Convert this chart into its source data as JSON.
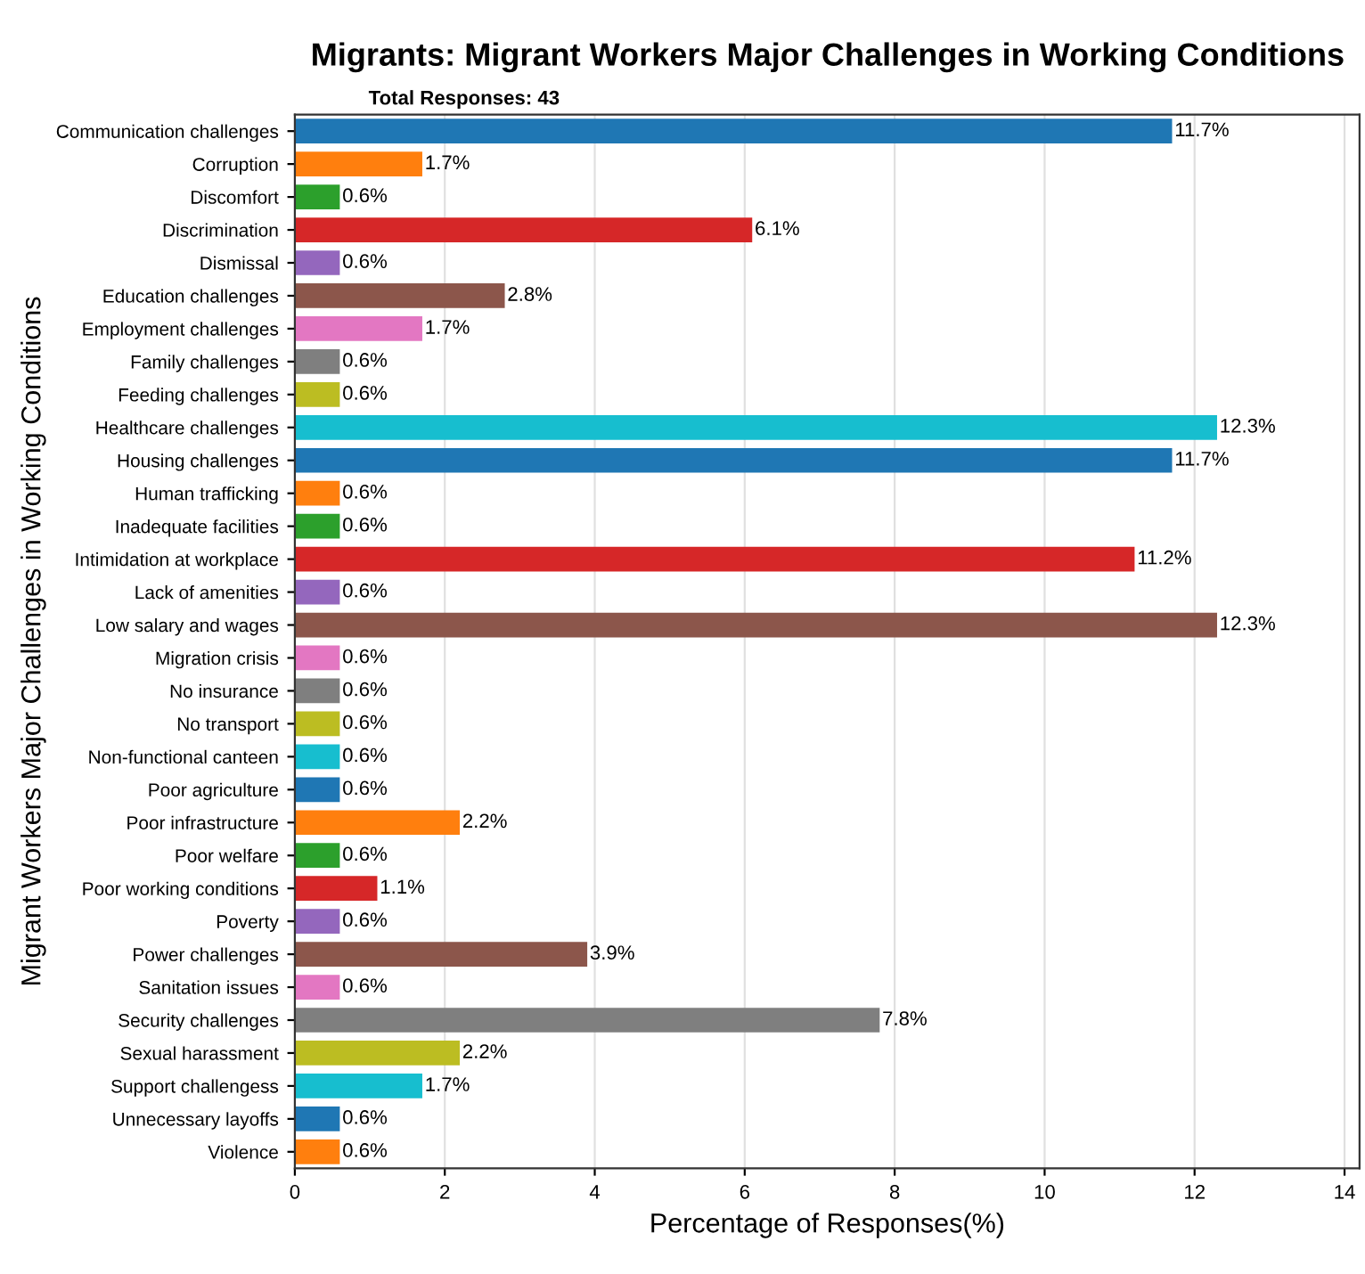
{
  "chart_data": {
    "type": "bar",
    "orientation": "horizontal",
    "title": "Migrants: Migrant Workers Major Challenges in Working Conditions",
    "subtitle": "Total Responses: 43",
    "xlabel": "Percentage of Responses(%)",
    "ylabel": "Migrant Workers Major Challenges in Working Conditions",
    "categories": [
      "Communication challenges",
      "Corruption",
      "Discomfort",
      "Discrimination",
      "Dismissal",
      "Education challenges",
      "Employment challenges",
      "Family challenges",
      "Feeding challenges",
      "Healthcare challenges",
      "Housing challenges",
      "Human trafficking",
      "Inadequate facilities",
      "Intimidation at workplace",
      "Lack of amenities",
      "Low salary and wages",
      "Migration crisis",
      "No insurance",
      "No transport",
      "Non-functional canteen",
      "Poor agriculture",
      "Poor infrastructure",
      "Poor welfare",
      "Poor working conditions",
      "Poverty",
      "Power challenges",
      "Sanitation issues",
      "Security challenges",
      "Sexual harassment",
      "Support challengess",
      "Unnecessary layoffs",
      "Violence"
    ],
    "values": [
      11.7,
      1.7,
      0.6,
      6.1,
      0.6,
      2.8,
      1.7,
      0.6,
      0.6,
      12.3,
      11.7,
      0.6,
      0.6,
      11.2,
      0.6,
      12.3,
      0.6,
      0.6,
      0.6,
      0.6,
      0.6,
      2.2,
      0.6,
      1.1,
      0.6,
      3.9,
      0.6,
      7.8,
      2.2,
      1.7,
      0.6,
      0.6
    ],
    "value_labels": [
      "11.7%",
      "1.7%",
      "0.6%",
      "6.1%",
      "0.6%",
      "2.8%",
      "1.7%",
      "0.6%",
      "0.6%",
      "12.3%",
      "11.7%",
      "0.6%",
      "0.6%",
      "11.2%",
      "0.6%",
      "12.3%",
      "0.6%",
      "0.6%",
      "0.6%",
      "0.6%",
      "0.6%",
      "2.2%",
      "0.6%",
      "1.1%",
      "0.6%",
      "3.9%",
      "0.6%",
      "7.8%",
      "2.2%",
      "1.7%",
      "0.6%",
      "0.6%"
    ],
    "colors": [
      "#1f77b4",
      "#ff7f0e",
      "#2ca02c",
      "#d62728",
      "#9467bd",
      "#8c564b",
      "#e377c2",
      "#7f7f7f",
      "#bcbd22",
      "#17becf",
      "#1f77b4",
      "#ff7f0e",
      "#2ca02c",
      "#d62728",
      "#9467bd",
      "#8c564b",
      "#e377c2",
      "#7f7f7f",
      "#bcbd22",
      "#17becf",
      "#1f77b4",
      "#ff7f0e",
      "#2ca02c",
      "#d62728",
      "#9467bd",
      "#8c564b",
      "#e377c2",
      "#7f7f7f",
      "#bcbd22",
      "#17becf",
      "#1f77b4",
      "#ff7f0e"
    ],
    "xlim": [
      0,
      14.2
    ],
    "xticks": [
      0,
      2,
      4,
      6,
      8,
      10,
      12,
      14
    ],
    "grid": "x"
  }
}
